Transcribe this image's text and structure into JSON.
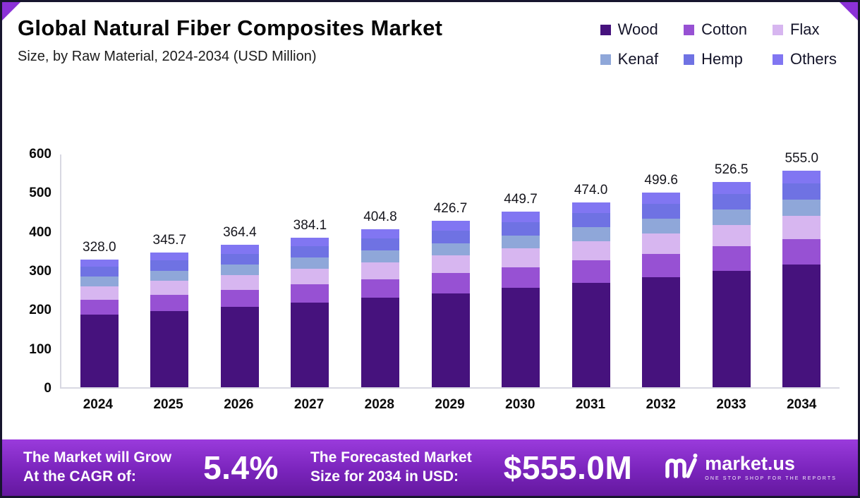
{
  "header": {
    "title": "Global Natural Fiber Composites Market",
    "subtitle": "Size, by Raw Material, 2024-2034 (USD Million)"
  },
  "chart_data": {
    "type": "bar",
    "stacked": true,
    "title": "Global Natural Fiber Composites Market Size, by Raw Material, 2024-2034 (USD Million)",
    "x": [
      "2024",
      "2025",
      "2026",
      "2027",
      "2028",
      "2029",
      "2030",
      "2031",
      "2032",
      "2033",
      "2034"
    ],
    "totals": [
      328.0,
      345.7,
      364.4,
      384.1,
      404.8,
      426.7,
      449.7,
      474.0,
      499.6,
      526.5,
      555.0
    ],
    "series": [
      {
        "name": "Wood",
        "color": "#46127d",
        "values": [
          185.3,
          195.3,
          205.9,
          217.0,
          228.7,
          241.1,
          254.1,
          267.8,
          282.3,
          297.5,
          313.6
        ]
      },
      {
        "name": "Cotton",
        "color": "#9751d3",
        "values": [
          39.4,
          41.5,
          43.7,
          46.1,
          48.6,
          51.2,
          54.0,
          56.9,
          60.0,
          63.2,
          66.6
        ]
      },
      {
        "name": "Flax",
        "color": "#d7b6f0",
        "values": [
          34.4,
          36.3,
          38.3,
          40.3,
          42.5,
          44.8,
          47.2,
          49.8,
          52.5,
          55.3,
          58.3
        ]
      },
      {
        "name": "Kenaf",
        "color": "#8fa7d9",
        "values": [
          24.6,
          25.9,
          27.3,
          28.8,
          30.4,
          32.0,
          33.7,
          35.6,
          37.5,
          39.5,
          41.6
        ]
      },
      {
        "name": "Hemp",
        "color": "#6f72e3",
        "values": [
          24.6,
          25.9,
          27.3,
          28.8,
          30.4,
          32.0,
          33.7,
          35.6,
          37.5,
          39.5,
          41.6
        ]
      },
      {
        "name": "Others",
        "color": "#8176f2",
        "values": [
          19.7,
          20.8,
          21.9,
          23.1,
          24.2,
          25.6,
          27.0,
          28.3,
          29.8,
          31.5,
          33.3
        ]
      }
    ],
    "ylim": [
      0,
      600
    ],
    "yticks": [
      0,
      100,
      200,
      300,
      400,
      500,
      600
    ],
    "xlabel": "",
    "ylabel": "",
    "legend_position": "top-right",
    "grid": false
  },
  "banner": {
    "cagr_label_line1": "The Market will Grow",
    "cagr_label_line2": "At the CAGR of:",
    "cagr_value": "5.4%",
    "forecast_label_line1": "The Forecasted Market",
    "forecast_label_line2": "Size for 2034 in USD:",
    "forecast_value": "$555.0M",
    "brand": "market.us",
    "brand_tagline": "ONE STOP SHOP FOR THE REPORTS"
  }
}
